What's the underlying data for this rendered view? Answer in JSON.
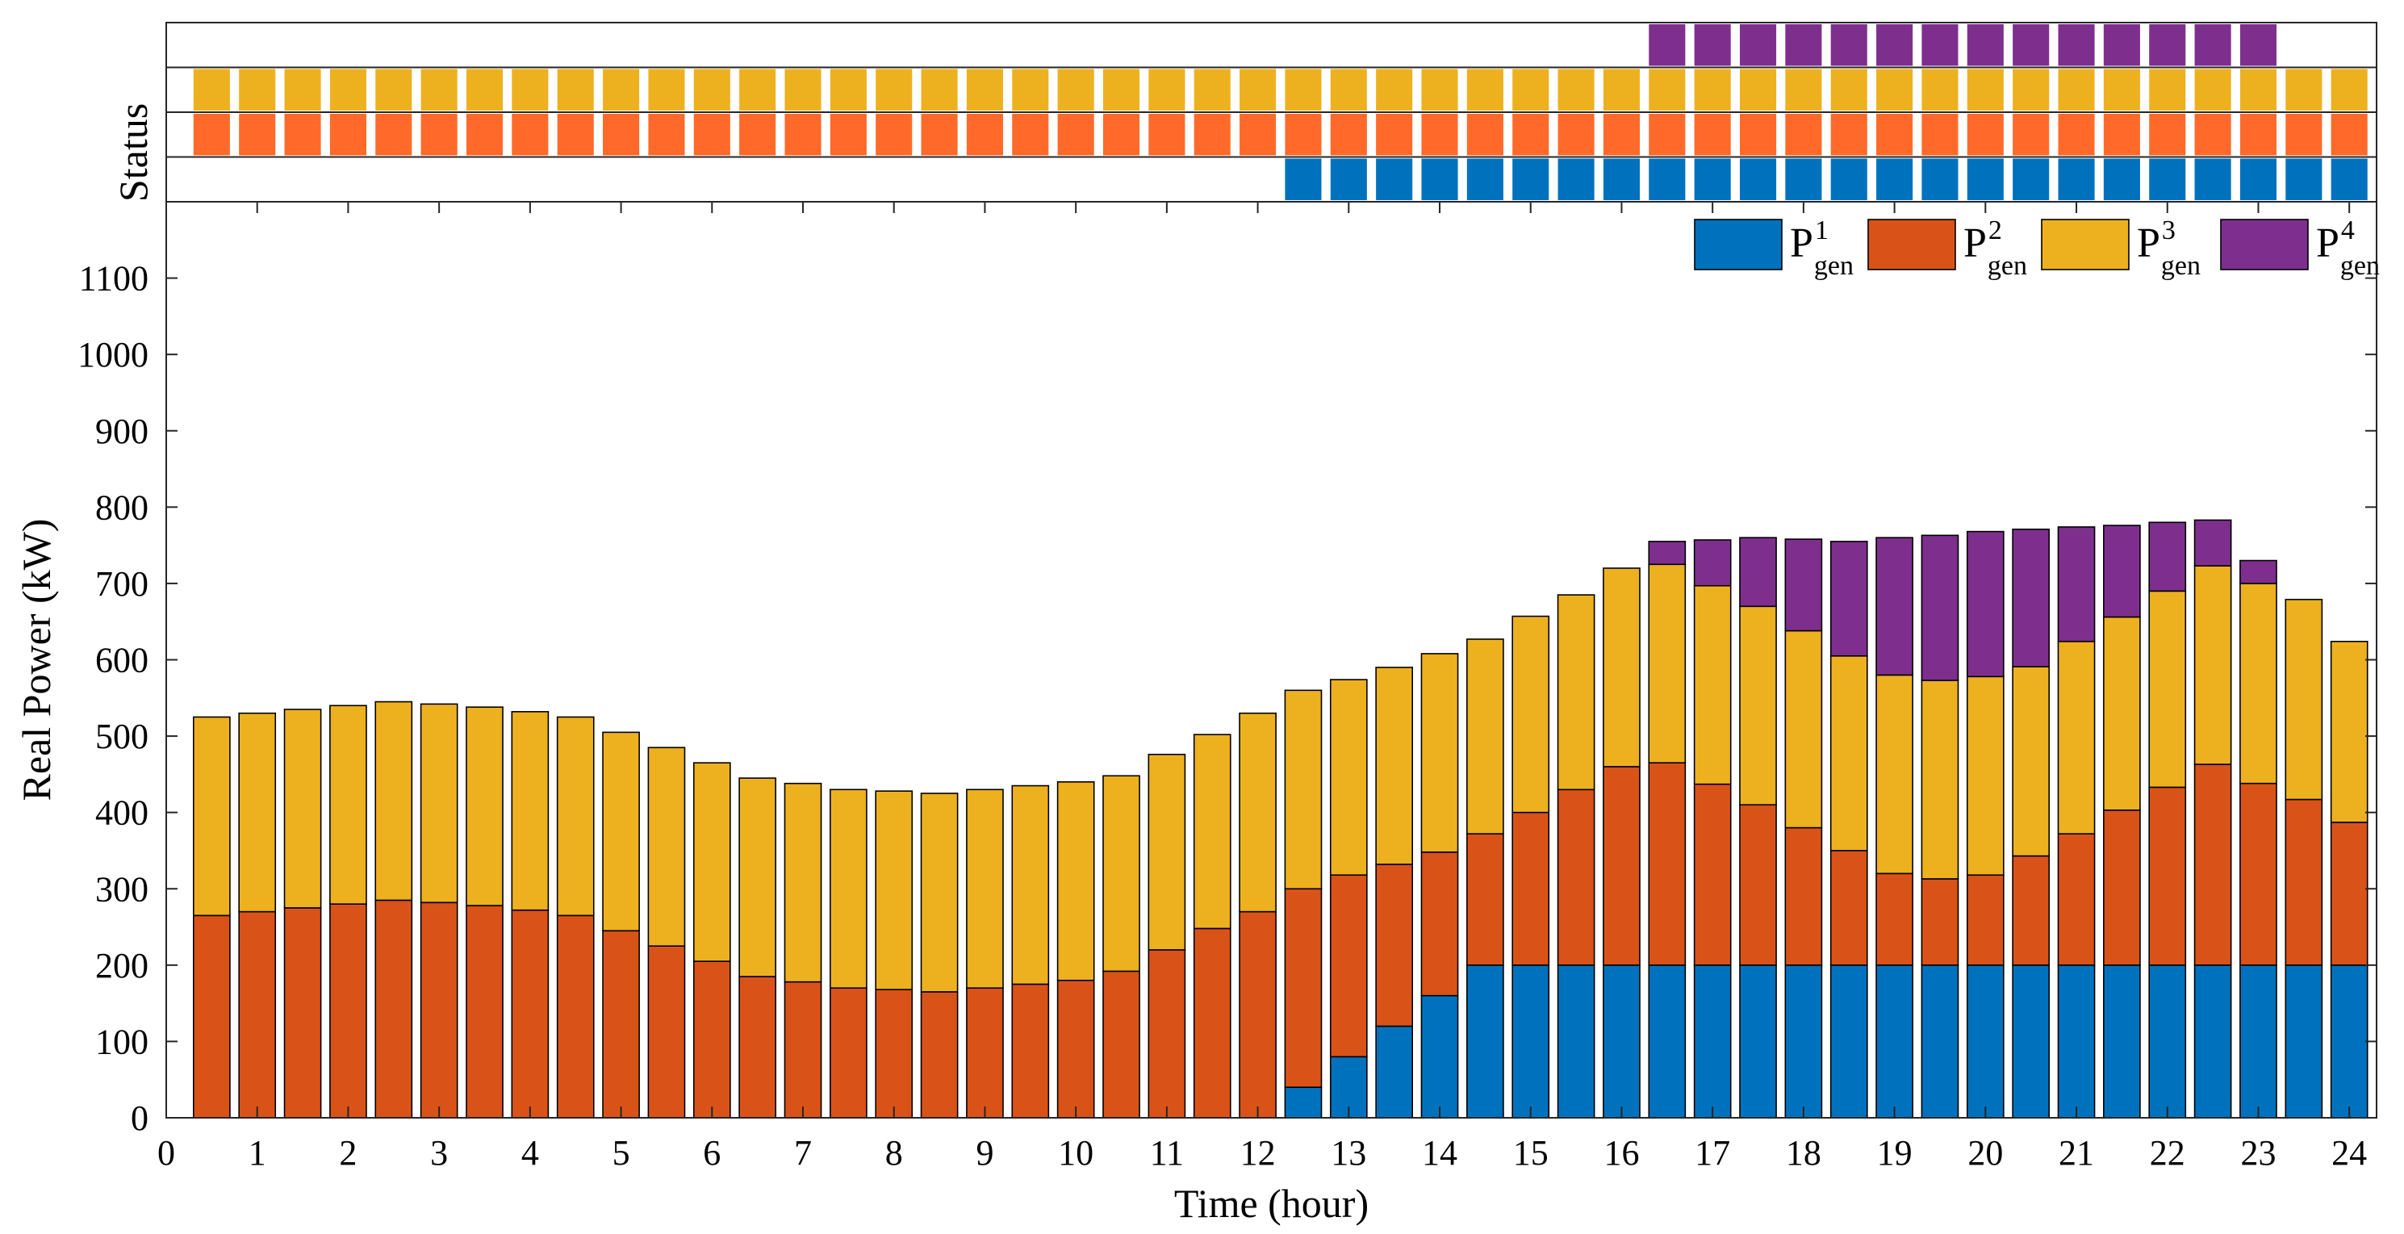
{
  "chart_data": [
    {
      "type": "bar",
      "stacked": true,
      "xlabel": "Time (hour)",
      "ylabel": "Real Power (kW)",
      "xlim": [
        0,
        24.3
      ],
      "ylim": [
        0,
        1200
      ],
      "xticks": [
        "0",
        "1",
        "2",
        "3",
        "4",
        "5",
        "6",
        "7",
        "8",
        "9",
        "10",
        "11",
        "12",
        "13",
        "14",
        "15",
        "16",
        "17",
        "18",
        "19",
        "20",
        "21",
        "22",
        "23",
        "24"
      ],
      "yticks": [
        "0",
        "100",
        "200",
        "300",
        "400",
        "500",
        "600",
        "700",
        "800",
        "900",
        "1000",
        "1100"
      ],
      "x": [
        0.5,
        1,
        1.5,
        2,
        2.5,
        3,
        3.5,
        4,
        4.5,
        5,
        5.5,
        6,
        6.5,
        7,
        7.5,
        8,
        8.5,
        9,
        9.5,
        10,
        10.5,
        11,
        11.5,
        12,
        12.5,
        13,
        13.5,
        14,
        14.5,
        15,
        15.5,
        16,
        16.5,
        17,
        17.5,
        18,
        18.5,
        19,
        19.5,
        20,
        20.5,
        21,
        21.5,
        22,
        22.5,
        23,
        23.5,
        24
      ],
      "legend_position": "top-right",
      "legend_orientation": "horizontal",
      "grid": false,
      "series": [
        {
          "name": "P",
          "sup": "1",
          "sub": "gen",
          "color": "#0072BD",
          "values": [
            0,
            0,
            0,
            0,
            0,
            0,
            0,
            0,
            0,
            0,
            0,
            0,
            0,
            0,
            0,
            0,
            0,
            0,
            0,
            0,
            0,
            0,
            0,
            0,
            40,
            80,
            120,
            160,
            200,
            200,
            200,
            200,
            200,
            200,
            200,
            200,
            200,
            200,
            200,
            200,
            200,
            200,
            200,
            200,
            200,
            200,
            200,
            200
          ]
        },
        {
          "name": "P",
          "sup": "2",
          "sub": "gen",
          "color": "#D95319",
          "values": [
            265,
            270,
            275,
            280,
            285,
            282,
            278,
            272,
            265,
            245,
            225,
            205,
            185,
            178,
            170,
            168,
            165,
            170,
            175,
            180,
            192,
            220,
            248,
            270,
            260,
            238,
            212,
            188,
            172,
            200,
            230,
            260,
            265,
            237,
            210,
            180,
            150,
            120,
            113,
            118,
            143,
            172,
            203,
            233,
            263,
            238,
            217,
            187
          ]
        },
        {
          "name": "P",
          "sup": "3",
          "sub": "gen",
          "color": "#EDB120",
          "values": [
            260,
            260,
            260,
            260,
            260,
            260,
            260,
            260,
            260,
            260,
            260,
            260,
            260,
            260,
            260,
            260,
            260,
            260,
            260,
            260,
            256,
            256,
            254,
            260,
            260,
            256,
            258,
            260,
            255,
            257,
            255,
            260,
            260,
            260,
            260,
            258,
            255,
            260,
            260,
            260,
            248,
            252,
            253,
            257,
            260,
            262,
            262,
            237
          ]
        },
        {
          "name": "P",
          "sup": "4",
          "sub": "gen",
          "color": "#7E2F8E",
          "values": [
            0,
            0,
            0,
            0,
            0,
            0,
            0,
            0,
            0,
            0,
            0,
            0,
            0,
            0,
            0,
            0,
            0,
            0,
            0,
            0,
            0,
            0,
            0,
            0,
            0,
            0,
            0,
            0,
            0,
            0,
            0,
            0,
            30,
            60,
            90,
            120,
            150,
            180,
            190,
            190,
            180,
            150,
            120,
            90,
            60,
            30,
            0,
            0
          ]
        }
      ]
    },
    {
      "type": "heatmap",
      "ylabel": "Status",
      "rows": [
        "P4",
        "P3",
        "P2",
        "P1"
      ],
      "colors": [
        "#7E2F8E",
        "#EDB120",
        "#FF6A2A",
        "#0072BD"
      ],
      "x": [
        0.5,
        1,
        1.5,
        2,
        2.5,
        3,
        3.5,
        4,
        4.5,
        5,
        5.5,
        6,
        6.5,
        7,
        7.5,
        8,
        8.5,
        9,
        9.5,
        10,
        10.5,
        11,
        11.5,
        12,
        12.5,
        13,
        13.5,
        14,
        14.5,
        15,
        15.5,
        16,
        16.5,
        17,
        17.5,
        18,
        18.5,
        19,
        19.5,
        20,
        20.5,
        21,
        21.5,
        22,
        22.5,
        23,
        23.5,
        24
      ],
      "values": [
        [
          0,
          0,
          0,
          0,
          0,
          0,
          0,
          0,
          0,
          0,
          0,
          0,
          0,
          0,
          0,
          0,
          0,
          0,
          0,
          0,
          0,
          0,
          0,
          0,
          0,
          0,
          0,
          0,
          0,
          0,
          0,
          0,
          1,
          1,
          1,
          1,
          1,
          1,
          1,
          1,
          1,
          1,
          1,
          1,
          1,
          1,
          0,
          0
        ],
        [
          1,
          1,
          1,
          1,
          1,
          1,
          1,
          1,
          1,
          1,
          1,
          1,
          1,
          1,
          1,
          1,
          1,
          1,
          1,
          1,
          1,
          1,
          1,
          1,
          1,
          1,
          1,
          1,
          1,
          1,
          1,
          1,
          1,
          1,
          1,
          1,
          1,
          1,
          1,
          1,
          1,
          1,
          1,
          1,
          1,
          1,
          1,
          1
        ],
        [
          1,
          1,
          1,
          1,
          1,
          1,
          1,
          1,
          1,
          1,
          1,
          1,
          1,
          1,
          1,
          1,
          1,
          1,
          1,
          1,
          1,
          1,
          1,
          1,
          1,
          1,
          1,
          1,
          1,
          1,
          1,
          1,
          1,
          1,
          1,
          1,
          1,
          1,
          1,
          1,
          1,
          1,
          1,
          1,
          1,
          1,
          1,
          1
        ],
        [
          0,
          0,
          0,
          0,
          0,
          0,
          0,
          0,
          0,
          0,
          0,
          0,
          0,
          0,
          0,
          0,
          0,
          0,
          0,
          0,
          0,
          0,
          0,
          0,
          1,
          1,
          1,
          1,
          1,
          1,
          1,
          1,
          1,
          1,
          1,
          1,
          1,
          1,
          1,
          1,
          1,
          1,
          1,
          1,
          1,
          1,
          1,
          1
        ]
      ]
    }
  ]
}
